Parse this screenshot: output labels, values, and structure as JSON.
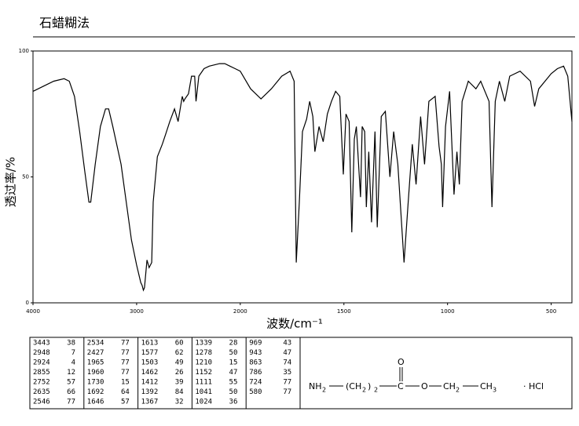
{
  "chart_data": {
    "type": "line",
    "title": "石蜡糊法",
    "x_label": "波数/cm⁻¹",
    "y_label": "透过率/%",
    "xlim": [
      4000,
      400
    ],
    "xticks": [
      4000,
      3000,
      2000,
      1500,
      1000,
      500
    ],
    "xscale_break": 2000,
    "ylim": [
      0,
      100
    ],
    "yticks": [
      0,
      50,
      100
    ],
    "grid": false,
    "series": [
      {
        "color": "#000000",
        "x": [
          4000,
          3900,
          3800,
          3700,
          3650,
          3600,
          3550,
          3500,
          3460,
          3443,
          3400,
          3350,
          3300,
          3270,
          3230,
          3150,
          3100,
          3050,
          3000,
          2960,
          2948,
          2935,
          2924,
          2900,
          2880,
          2855,
          2840,
          2800,
          2752,
          2720,
          2680,
          2635,
          2600,
          2560,
          2546,
          2534,
          2500,
          2470,
          2440,
          2427,
          2400,
          2350,
          2300,
          2200,
          2150,
          2100,
          2050,
          2000,
          1950,
          1900,
          1850,
          1800,
          1760,
          1740,
          1730,
          1715,
          1700,
          1680,
          1665,
          1650,
          1640,
          1620,
          1600,
          1580,
          1560,
          1540,
          1520,
          1503,
          1490,
          1475,
          1462,
          1450,
          1440,
          1420,
          1412,
          1400,
          1392,
          1380,
          1367,
          1350,
          1339,
          1320,
          1300,
          1278,
          1260,
          1240,
          1210,
          1190,
          1170,
          1152,
          1130,
          1111,
          1090,
          1060,
          1041,
          1030,
          1024,
          1010,
          990,
          969,
          955,
          943,
          930,
          900,
          863,
          840,
          800,
          786,
          770,
          750,
          724,
          700,
          650,
          600,
          580,
          560,
          500,
          470,
          440,
          420,
          400
        ],
        "values": [
          84,
          86,
          88,
          89,
          88,
          82,
          68,
          52,
          40,
          40,
          55,
          70,
          77,
          77,
          70,
          55,
          40,
          25,
          15,
          8,
          7,
          5,
          6,
          17,
          14,
          16,
          40,
          58,
          63,
          67,
          72,
          77,
          72,
          82,
          80,
          81,
          83,
          90,
          90,
          80,
          90,
          93,
          94,
          95,
          95,
          94,
          93,
          92,
          85,
          81,
          85,
          90,
          92,
          88,
          16,
          40,
          68,
          73,
          80,
          74,
          60,
          70,
          64,
          75,
          80,
          84,
          82,
          51,
          75,
          72,
          28,
          65,
          70,
          42,
          70,
          68,
          38,
          60,
          32,
          68,
          30,
          74,
          76,
          50,
          68,
          55,
          16,
          40,
          63,
          47,
          74,
          55,
          80,
          82,
          62,
          55,
          38,
          70,
          84,
          43,
          60,
          47,
          80,
          88,
          85,
          88,
          80,
          38,
          80,
          88,
          80,
          90,
          92,
          88,
          78,
          85,
          91,
          93,
          94,
          90,
          72
        ]
      }
    ]
  },
  "peak_table": {
    "wavenumbers": [
      3443,
      2948,
      2924,
      2855,
      2752,
      2635,
      2546,
      2534,
      2427,
      1965,
      1960,
      1730,
      1692,
      1646,
      1613,
      1577,
      1503,
      1462,
      1412,
      1392,
      1367,
      1339,
      1278,
      1210,
      1152,
      1111,
      1041,
      1024,
      969,
      943,
      863,
      786,
      724,
      580
    ],
    "transmittance": [
      38,
      7,
      4,
      12,
      57,
      66,
      77,
      77,
      77,
      77,
      77,
      15,
      64,
      57,
      60,
      62,
      49,
      26,
      39,
      84,
      32,
      28,
      50,
      15,
      47,
      55,
      50,
      36,
      43,
      47,
      74,
      35,
      77,
      77
    ]
  },
  "structure": {
    "labels": [
      "NH",
      "2",
      "(CH",
      "2",
      ")",
      "2",
      "C",
      "O",
      "O",
      "CH",
      "2",
      "CH",
      "3",
      "· HCl"
    ]
  }
}
